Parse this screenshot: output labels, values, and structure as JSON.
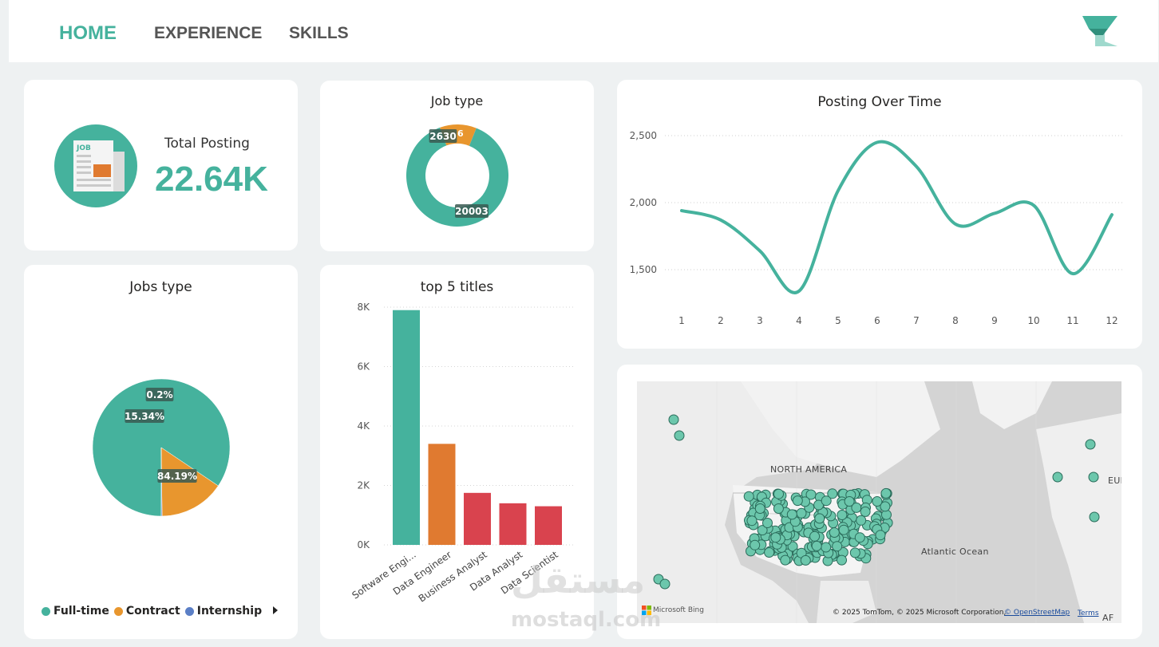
{
  "nav": {
    "home": "HOME",
    "experience": "EXPERIENCE",
    "skills": "SKILLS"
  },
  "logo_icon": "funnel-logo-icon",
  "kpi": {
    "label": "Total Posting",
    "value": "22.64K",
    "icon": "newspaper-job-icon",
    "icon_text": "JOB"
  },
  "job_type_donut": {
    "title": "Job type",
    "labels": [
      "2630",
      "6",
      "20003"
    ],
    "chart_data": {
      "type": "pie",
      "variant": "donut",
      "series": [
        {
          "values": [
            20003,
            2630,
            6
          ]
        }
      ]
    }
  },
  "jobs_type_pie": {
    "title": "Jobs type",
    "labels": [
      "84.19%",
      "15.34%",
      "0.2%"
    ],
    "legend": [
      "Full-time",
      "Contract",
      "Internship"
    ],
    "colors": [
      "#45b29d",
      "#e8962e",
      "#5b7fc6"
    ],
    "chart_data": {
      "type": "pie",
      "categories": [
        "Full-time",
        "Contract",
        "Internship"
      ],
      "values": [
        84.19,
        15.34,
        0.2
      ]
    }
  },
  "top_titles": {
    "title": "top 5 titles",
    "ticks": [
      "8K",
      "6K",
      "4K",
      "2K",
      "0K"
    ],
    "colors": [
      "#45b29d",
      "#e07a30",
      "#d9434e",
      "#d9434e",
      "#d9434e"
    ],
    "chart_data": {
      "type": "bar",
      "categories": [
        "Software Engi...",
        "Data Engineer",
        "Business Analyst",
        "Data Analyst",
        "Data Scientist"
      ],
      "values": [
        7900,
        3400,
        1750,
        1400,
        1300
      ],
      "ylim": [
        0,
        8000
      ]
    }
  },
  "posting_over_time": {
    "title": "Posting Over Time",
    "ticks": [
      "2,500",
      "2,000",
      "1,500"
    ],
    "color": "#45b29d",
    "chart_data": {
      "type": "line",
      "x": [
        "1",
        "2",
        "3",
        "4",
        "5",
        "6",
        "7",
        "8",
        "9",
        "10",
        "11",
        "12"
      ],
      "values": [
        1940,
        1870,
        1640,
        1340,
        2090,
        2450,
        2270,
        1840,
        1920,
        1980,
        1470,
        1910
      ],
      "ylim": [
        1300,
        2550
      ]
    }
  },
  "map": {
    "labels": [
      "NORTH AMERICA",
      "Atlantic Ocean",
      "EUR",
      "AF"
    ],
    "bing": "Microsoft Bing",
    "attribution": "© 2025 TomTom, © 2025 Microsoft Corporation,",
    "osm": "© OpenStreetMap",
    "terms": "Terms"
  },
  "watermark": {
    "arabic": "مستقل",
    "latin": "mostaql.com"
  }
}
